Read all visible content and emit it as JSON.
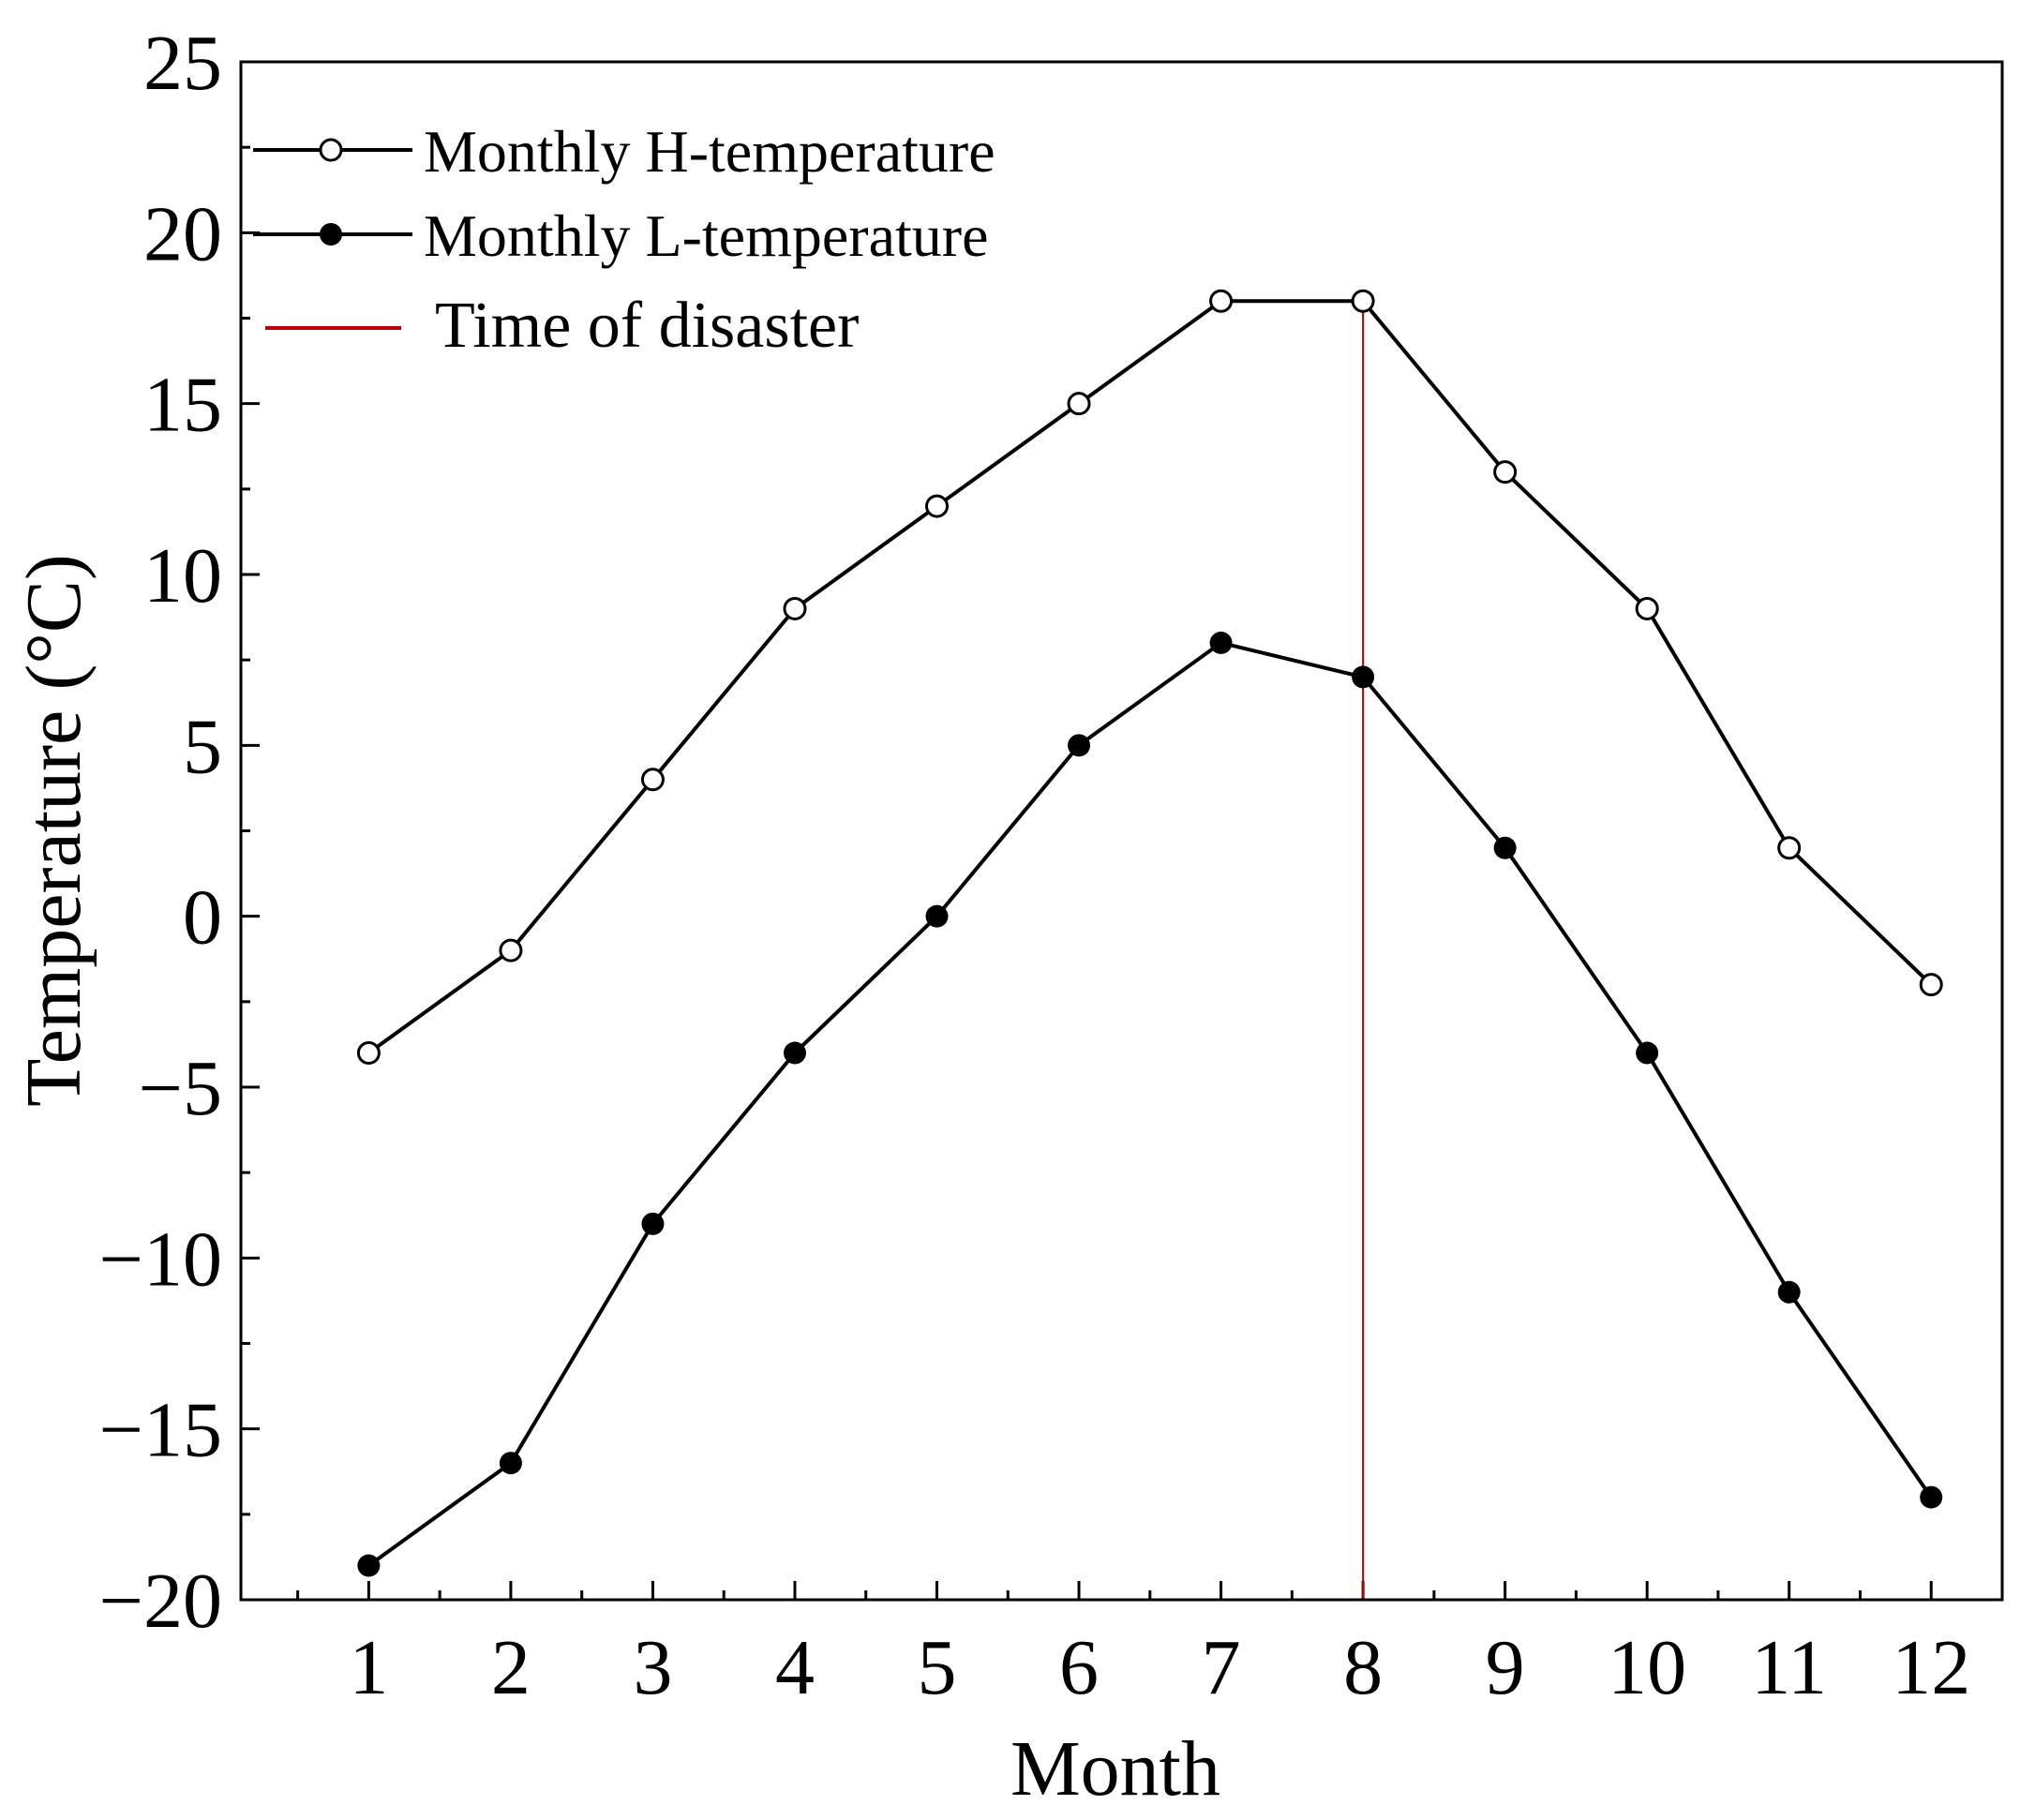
{
  "chart_data": {
    "type": "line",
    "xlabel": "Month",
    "ylabel": "Temperature (°C)",
    "xlim": [
      0.1,
      12.5
    ],
    "ylim": [
      -20,
      25
    ],
    "x_ticks": [
      1,
      2,
      3,
      4,
      5,
      6,
      7,
      8,
      9,
      10,
      11,
      12
    ],
    "y_ticks": [
      -20,
      -15,
      -10,
      -5,
      0,
      5,
      10,
      15,
      20,
      25
    ],
    "x_tick_labels": [
      "1",
      "2",
      "3",
      "4",
      "5",
      "6",
      "7",
      "8",
      "9",
      "10",
      "11",
      "12"
    ],
    "y_tick_labels": [
      "−20",
      "−15",
      "−10",
      "−5",
      "0",
      "5",
      "10",
      "15",
      "20",
      "25"
    ],
    "x": [
      1,
      2,
      3,
      4,
      5,
      6,
      7,
      8,
      9,
      10,
      11,
      12
    ],
    "series": [
      {
        "name": "Monthly H-temperature",
        "marker": "open-circle",
        "color": "#000000",
        "values": [
          -4,
          -1,
          4,
          9,
          12,
          15,
          18,
          18,
          13,
          9,
          2,
          -2
        ]
      },
      {
        "name": "Monthly L-temperature",
        "marker": "filled-circle",
        "color": "#000000",
        "values": [
          -19,
          -16,
          -9,
          -4,
          0,
          5,
          8,
          7,
          2,
          -4,
          -11,
          -17
        ]
      }
    ],
    "annotations": [
      {
        "type": "vline",
        "x": 8,
        "label": "Time of disaster",
        "color": "#c00000"
      }
    ],
    "legend": {
      "position": "top-left",
      "entries": [
        "Monthly H-temperature",
        "Monthly L-temperature",
        "Time of disaster"
      ]
    },
    "grid": false
  }
}
